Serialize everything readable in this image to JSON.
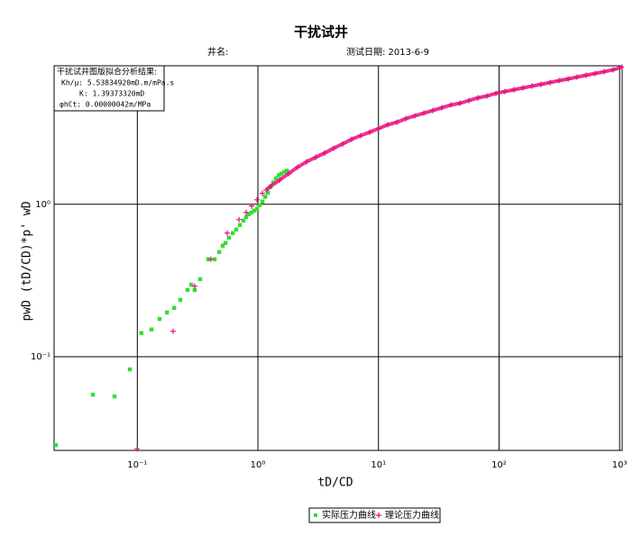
{
  "chart_data": {
    "type": "scatter",
    "title": "干扰试井",
    "well_label": "井名:",
    "test_date": "测试日期: 2013-6-9",
    "info_box": [
      "干扰试井图版拟合分析结果:",
      "Kh/μ: 5.53834920mD.m/mPa.s",
      "K: 1.39373320mD",
      "φhCt: 0.00000042m/MPa"
    ],
    "x_label": "tD/CD",
    "y_label": "pwD (tD/CD)*p' wD",
    "xscale": "log",
    "yscale": "log",
    "grid": true,
    "xlim": [
      0.0204,
      1050
    ],
    "ylim": [
      0.0243,
      8.1
    ],
    "xticks": [
      {
        "value": 0.1,
        "label": "10⁻¹"
      },
      {
        "value": 1,
        "label": "10⁰"
      },
      {
        "value": 10,
        "label": "10¹"
      },
      {
        "value": 100,
        "label": "10²"
      },
      {
        "value": 1000,
        "label": "10³"
      }
    ],
    "yticks": [
      {
        "value": 0.1,
        "label": "10⁻¹"
      },
      {
        "value": 1,
        "label": "10⁰"
      }
    ],
    "legend": "bottom",
    "series": [
      {
        "name": "实际压力曲线",
        "color": "#33dd33",
        "marker": "square",
        "x": [
          0.0211,
          0.0428,
          0.0647,
          0.0867,
          0.108,
          0.131,
          0.153,
          0.176,
          0.202,
          0.227,
          0.261,
          0.28,
          0.299,
          0.332,
          0.388,
          0.438,
          0.477,
          0.511,
          0.538,
          0.576,
          0.618,
          0.661,
          0.708,
          0.759,
          0.8,
          0.842,
          0.887,
          0.933,
          0.983,
          1.035,
          1.09,
          1.15,
          1.21,
          1.27,
          1.34,
          1.41,
          1.49,
          1.56,
          1.65,
          1.74
        ],
        "values": [
          0.0263,
          0.0564,
          0.0549,
          0.0826,
          0.143,
          0.151,
          0.177,
          0.195,
          0.209,
          0.236,
          0.274,
          0.297,
          0.274,
          0.323,
          0.436,
          0.436,
          0.486,
          0.535,
          0.557,
          0.604,
          0.647,
          0.683,
          0.731,
          0.782,
          0.826,
          0.861,
          0.885,
          0.909,
          0.934,
          0.987,
          1.04,
          1.12,
          1.19,
          1.3,
          1.39,
          1.48,
          1.55,
          1.59,
          1.63,
          1.66
        ]
      },
      {
        "name": "理论压力曲线",
        "color": "#e8107e",
        "marker": "plus",
        "x": [
          0.0995,
          0.198,
          0.299,
          0.408,
          0.557,
          0.697,
          0.8,
          0.887,
          0.983,
          1.09,
          1.17,
          1.27,
          1.51,
          1.8,
          2.13,
          2.53,
          3.01,
          3.58,
          4.25,
          5.05,
          6.0,
          7.12,
          8.46,
          10.05,
          11.9,
          14.2,
          16.9,
          20.0,
          23.8,
          28.2,
          33.6,
          39.9,
          47.4,
          56.3,
          66.8,
          79.4,
          94.3,
          112,
          133,
          158,
          188,
          223,
          265,
          315,
          374,
          444,
          528,
          627,
          745,
          885,
          1050
        ],
        "values": [
          0.0249,
          0.147,
          0.29,
          0.436,
          0.647,
          0.793,
          0.885,
          0.973,
          1.07,
          1.18,
          1.24,
          1.31,
          1.44,
          1.59,
          1.75,
          1.9,
          2.03,
          2.17,
          2.33,
          2.49,
          2.67,
          2.82,
          2.97,
          3.14,
          3.32,
          3.45,
          3.65,
          3.8,
          3.96,
          4.12,
          4.3,
          4.48,
          4.6,
          4.79,
          4.99,
          5.13,
          5.34,
          5.49,
          5.64,
          5.8,
          5.96,
          6.12,
          6.29,
          6.47,
          6.64,
          6.83,
          7.02,
          7.21,
          7.41,
          7.62,
          7.93
        ]
      }
    ]
  }
}
